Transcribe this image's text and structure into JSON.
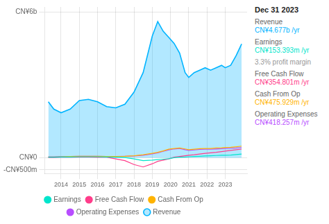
{
  "chart_data": {
    "type": "line",
    "x": [
      2013.3,
      2013.6,
      2014.0,
      2014.5,
      2015.0,
      2015.5,
      2016.0,
      2016.5,
      2017.0,
      2017.5,
      2018.0,
      2018.5,
      2019.0,
      2019.3,
      2019.6,
      2019.9,
      2020.2,
      2020.5,
      2020.8,
      2021.0,
      2021.3,
      2021.6,
      2021.9,
      2022.2,
      2022.5,
      2022.8,
      2023.0,
      2023.3,
      2023.6,
      2023.9
    ],
    "series": [
      {
        "name": "Revenue",
        "type": "area",
        "color": "#00b4ff",
        "values": [
          2.3,
          2.0,
          1.85,
          2.0,
          2.35,
          2.4,
          2.3,
          2.1,
          2.05,
          2.2,
          2.7,
          3.5,
          5.0,
          5.6,
          5.2,
          4.95,
          4.7,
          4.3,
          3.5,
          3.3,
          3.5,
          3.6,
          3.7,
          3.6,
          3.7,
          3.8,
          3.7,
          3.8,
          4.2,
          4.677
        ]
      },
      {
        "name": "Earnings",
        "type": "line",
        "color": "#00e5cc",
        "values": [
          0.02,
          0.02,
          0.03,
          0.03,
          0.04,
          0.04,
          0.04,
          0.03,
          0.02,
          0.01,
          -0.05,
          -0.12,
          -0.1,
          -0.08,
          -0.06,
          -0.04,
          0.0,
          0.02,
          0.03,
          0.04,
          0.05,
          0.06,
          0.07,
          0.08,
          0.09,
          0.1,
          0.1,
          0.11,
          0.13,
          0.153
        ]
      },
      {
        "name": "Free Cash Flow",
        "type": "line",
        "color": "#ff3d8a",
        "values": [
          0.01,
          0.01,
          0.02,
          0.02,
          0.03,
          0.03,
          0.02,
          0.02,
          -0.05,
          -0.12,
          -0.28,
          -0.38,
          -0.25,
          -0.15,
          -0.1,
          -0.05,
          0.02,
          0.05,
          0.08,
          0.1,
          0.12,
          0.15,
          0.18,
          0.2,
          0.22,
          0.25,
          0.27,
          0.3,
          0.33,
          0.354
        ]
      },
      {
        "name": "Cash From Op",
        "type": "line",
        "color": "#ffb300",
        "values": [
          0.03,
          0.03,
          0.04,
          0.05,
          0.06,
          0.06,
          0.06,
          0.05,
          0.05,
          0.06,
          0.08,
          0.12,
          0.18,
          0.22,
          0.28,
          0.35,
          0.38,
          0.4,
          0.36,
          0.33,
          0.35,
          0.37,
          0.38,
          0.38,
          0.4,
          0.41,
          0.42,
          0.43,
          0.45,
          0.475
        ]
      },
      {
        "name": "Operating Expenses",
        "type": "line",
        "color": "#b84dff",
        "values": [
          0.04,
          0.04,
          0.05,
          0.05,
          0.06,
          0.06,
          0.06,
          0.05,
          0.05,
          0.06,
          0.07,
          0.1,
          0.16,
          0.2,
          0.26,
          0.32,
          0.36,
          0.38,
          0.33,
          0.3,
          0.32,
          0.34,
          0.35,
          0.35,
          0.36,
          0.37,
          0.38,
          0.39,
          0.4,
          0.418
        ]
      }
    ],
    "xlim": [
      2013.1,
      2024.2
    ],
    "xticks": [
      2014,
      2015,
      2016,
      2017,
      2018,
      2019,
      2020,
      2021,
      2022,
      2023
    ],
    "ylim": [
      -0.65,
      6.2
    ],
    "yticks": [
      {
        "value": 6.0,
        "label": "CN¥6b"
      },
      {
        "value": 0.0,
        "label": "CN¥0"
      },
      {
        "value": -0.5,
        "label": "-CN¥500m"
      }
    ],
    "grid": true,
    "legend": "bottom",
    "annotations": [
      {
        "text": "Dec 31 2023"
      },
      {
        "label": "Revenue",
        "text": "CN¥4.677b /yr",
        "color": "#00b4ff"
      },
      {
        "label": "Earnings",
        "text": "CN¥153.393m /yr",
        "color": "#00e5cc"
      },
      {
        "text": "3.3% profit margin",
        "color": "#999999"
      },
      {
        "label": "Free Cash Flow",
        "text": "CN¥354.801m /yr",
        "color": "#ff3d8a"
      },
      {
        "label": "Cash From Op",
        "text": "CN¥475.929m /yr",
        "color": "#ffb300"
      },
      {
        "label": "Operating Expenses",
        "text": "CN¥418.257m /yr",
        "color": "#b84dff"
      }
    ]
  }
}
